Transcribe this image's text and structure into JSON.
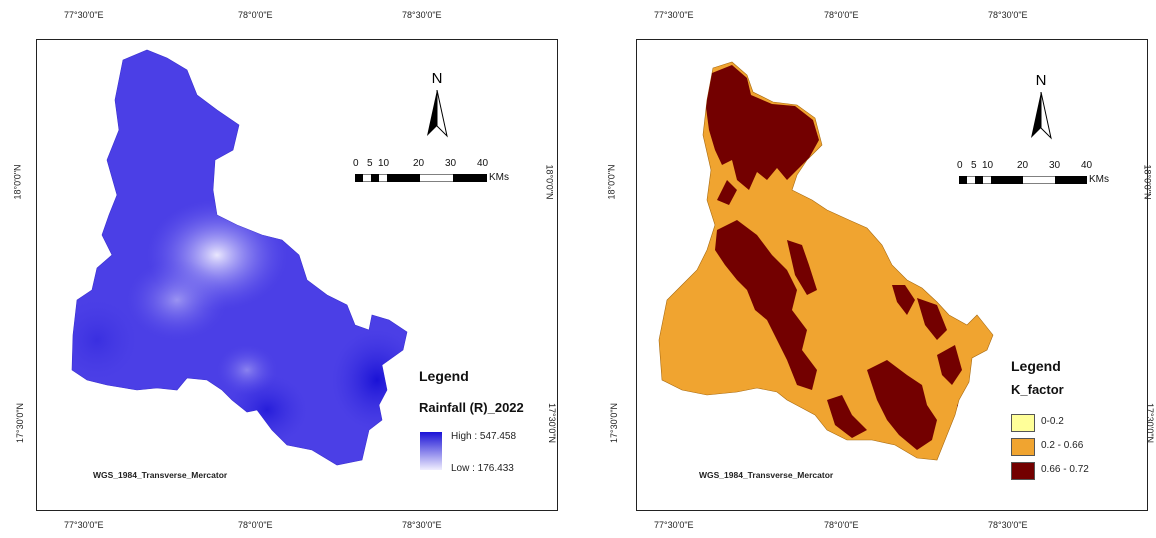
{
  "left_map": {
    "lon_ticks": [
      "77°30'0\"E",
      "78°0'0\"E",
      "78°30'0\"E"
    ],
    "lat_ticks": [
      "18°0'0\"N",
      "17°30'0\"N"
    ],
    "north_label": "N",
    "scale": {
      "labels": [
        "0",
        "5",
        "10",
        "20",
        "30",
        "40"
      ],
      "unit": "KMs"
    },
    "legend": {
      "title": "Legend",
      "subtitle": "Rainfall (R)_2022",
      "high_label": "High : 547.458",
      "low_label": "Low : 176.433",
      "high_color": "#1a12d6",
      "low_color": "#f0eefe"
    },
    "projection": "WGS_1984_Transverse_Mercator",
    "fill_color": "#4b3fe6"
  },
  "right_map": {
    "lon_ticks": [
      "77°30'0\"E",
      "78°0'0\"E",
      "78°30'0\"E"
    ],
    "lat_ticks": [
      "18°0'0\"N",
      "17°30'0\"N"
    ],
    "north_label": "N",
    "scale": {
      "labels": [
        "0",
        "5",
        "10",
        "20",
        "30",
        "40"
      ],
      "unit": "KMs"
    },
    "legend": {
      "title": "Legend",
      "subtitle": "K_factor",
      "classes": [
        {
          "label": "0-0.2",
          "color": "#ffff99"
        },
        {
          "label": "0.2 - 0.66",
          "color": "#f0a430"
        },
        {
          "label": "0.66 - 0.72",
          "color": "#730000"
        }
      ]
    },
    "projection": "WGS_1984_Transverse_Mercator"
  }
}
